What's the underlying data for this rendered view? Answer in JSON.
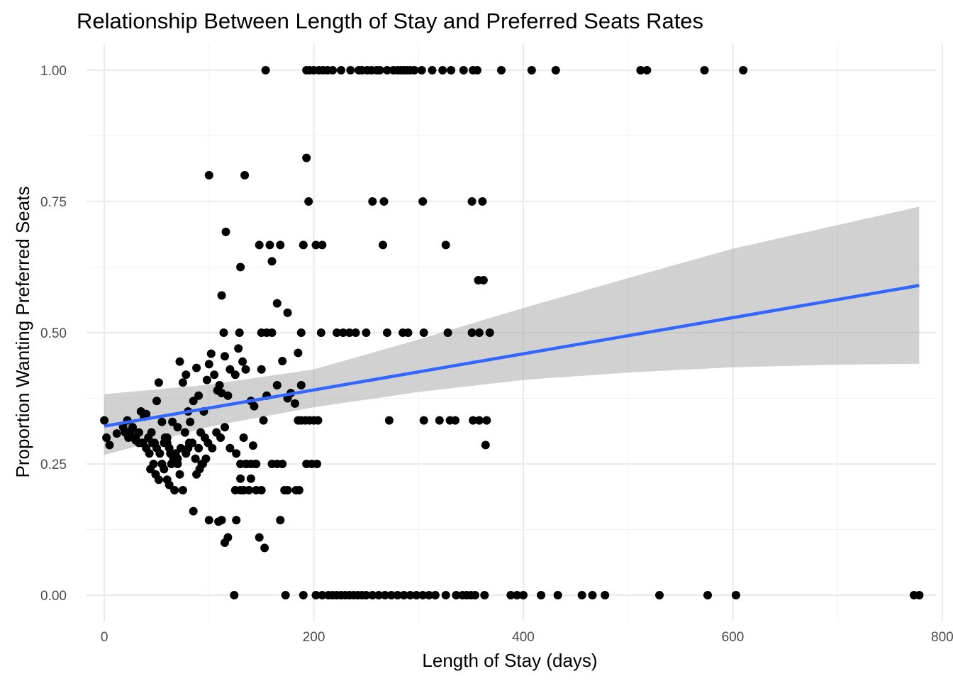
{
  "chart_data": {
    "type": "scatter",
    "title": "Relationship Between Length of Stay and Preferred Seats Rates",
    "xlabel": "Length of Stay (days)",
    "ylabel": "Proportion Wanting Preferred Seats",
    "xlim": [
      -17,
      794
    ],
    "ylim": [
      -0.05,
      1.05
    ],
    "x_ticks": [
      0,
      200,
      400,
      600,
      800
    ],
    "x_tick_labels": [
      "0",
      "200",
      "400",
      "600",
      "800"
    ],
    "y_ticks": [
      0,
      0.25,
      0.5,
      0.75,
      1
    ],
    "y_tick_labels": [
      "0.00",
      "0.25",
      "0.50",
      "0.75",
      "1.00"
    ],
    "grid": true,
    "legend": "none",
    "colors": {
      "points": "#000000",
      "trend_line": "#3366ff",
      "confidence_band": "#999999"
    },
    "trend_line": {
      "x": [
        0,
        778
      ],
      "y": [
        0.322,
        0.59
      ],
      "band": {
        "x": [
          0,
          100,
          200,
          300,
          400,
          500,
          600,
          700,
          778
        ],
        "lower": [
          0.267,
          0.321,
          0.358,
          0.387,
          0.41,
          0.424,
          0.434,
          0.439,
          0.441
        ],
        "upper": [
          0.383,
          0.401,
          0.43,
          0.487,
          0.547,
          0.604,
          0.66,
          0.705,
          0.74
        ]
      }
    },
    "series": [
      {
        "x": [
          154,
          193,
          196,
          200,
          205,
          209,
          213,
          218,
          226,
          235,
          243,
          246,
          251,
          255,
          260,
          263,
          270,
          276,
          280,
          283,
          286,
          289,
          292,
          296,
          303,
          313,
          323,
          331,
          343,
          352,
          356,
          379,
          408,
          431,
          512,
          518,
          573,
          610,
          193,
          100,
          134,
          195,
          256,
          267,
          304,
          351,
          361,
          116,
          148,
          158,
          168,
          190,
          202,
          208,
          266,
          326,
          130,
          160,
          357,
          362,
          112,
          165,
          175,
          114,
          129,
          150,
          155,
          160,
          188,
          207,
          222,
          228,
          234,
          240,
          250,
          270,
          285,
          290,
          305,
          328,
          351,
          358,
          368,
          185
        ],
        "y": [
          1,
          1,
          1,
          1,
          1,
          1,
          1,
          1,
          1,
          1,
          1,
          1,
          1,
          1,
          1,
          1,
          1,
          1,
          1,
          1,
          1,
          1,
          1,
          1,
          1,
          1,
          1,
          1,
          1,
          1,
          1,
          1,
          1,
          1,
          1,
          1,
          1,
          1,
          0.833,
          0.8,
          0.8,
          0.75,
          0.75,
          0.75,
          0.75,
          0.75,
          0.75,
          0.692,
          0.667,
          0.667,
          0.667,
          0.667,
          0.667,
          0.667,
          0.667,
          0.667,
          0.625,
          0.636,
          0.6,
          0.6,
          0.571,
          0.556,
          0.538,
          0.5,
          0.5,
          0.5,
          0.5,
          0.5,
          0.5,
          0.5,
          0.5,
          0.5,
          0.5,
          0.5,
          0.5,
          0.5,
          0.5,
          0.5,
          0.5,
          0.5,
          0.5,
          0.5,
          0.5,
          0.4615
        ]
      },
      {
        "x": [
          0,
          2,
          5,
          12,
          18,
          22,
          25,
          28,
          30,
          33,
          35,
          38,
          40,
          42,
          45,
          48,
          50,
          52,
          55,
          58,
          60,
          62,
          65,
          68,
          70,
          72,
          75,
          78,
          80,
          82,
          85,
          88,
          90,
          92,
          95,
          98,
          100,
          102,
          105,
          108,
          110,
          112,
          115,
          118,
          120,
          125,
          128,
          132,
          135,
          140,
          143,
          150,
          155,
          165,
          170,
          175,
          178,
          182,
          188,
          20,
          23,
          27,
          30,
          33,
          37,
          40,
          43,
          46,
          50,
          53,
          57,
          60,
          63,
          66,
          70,
          73,
          77,
          80,
          84,
          87,
          90,
          93,
          96,
          99,
          103,
          107,
          111,
          115,
          120,
          126,
          133,
          36,
          44,
          47,
          49,
          52,
          55,
          57,
          60,
          62,
          64,
          67,
          70,
          72,
          75,
          78,
          81,
          85,
          88,
          91,
          94,
          97,
          109,
          152,
          185,
          188,
          192,
          196,
          200,
          204,
          272,
          305,
          320,
          330,
          335,
          352,
          358,
          365,
          144,
          160,
          165,
          170,
          193,
          198,
          203,
          136,
          140,
          125,
          130,
          133,
          138,
          145,
          150,
          130,
          135,
          142,
          145,
          172,
          175,
          183,
          186,
          130,
          140,
          100,
          112,
          126,
          168,
          115,
          118,
          148,
          153,
          364
        ],
        "y": [
          0.333,
          0.3,
          0.286,
          0.308,
          0.32,
          0.333,
          0.312,
          0.3,
          0.295,
          0.31,
          0.35,
          0.34,
          0.345,
          0.3,
          0.31,
          0.29,
          0.37,
          0.405,
          0.33,
          0.3,
          0.29,
          0.28,
          0.33,
          0.27,
          0.32,
          0.445,
          0.405,
          0.42,
          0.35,
          0.33,
          0.37,
          0.433,
          0.38,
          0.31,
          0.35,
          0.41,
          0.44,
          0.46,
          0.42,
          0.39,
          0.4,
          0.385,
          0.455,
          0.38,
          0.43,
          0.42,
          0.47,
          0.445,
          0.43,
          0.37,
          0.36,
          0.43,
          0.38,
          0.4,
          0.446,
          0.375,
          0.385,
          0.365,
          0.4,
          0.31,
          0.3,
          0.32,
          0.3,
          0.29,
          0.29,
          0.28,
          0.27,
          0.29,
          0.28,
          0.27,
          0.29,
          0.3,
          0.27,
          0.26,
          0.25,
          0.28,
          0.31,
          0.28,
          0.29,
          0.26,
          0.28,
          0.25,
          0.3,
          0.29,
          0.28,
          0.31,
          0.3,
          0.32,
          0.28,
          0.27,
          0.3,
          0.29,
          0.24,
          0.25,
          0.23,
          0.22,
          0.25,
          0.24,
          0.22,
          0.21,
          0.25,
          0.2,
          0.26,
          0.23,
          0.2,
          0.27,
          0.29,
          0.16,
          0.23,
          0.24,
          0.25,
          0.26,
          0.14,
          0.333,
          0.333,
          0.333,
          0.333,
          0.333,
          0.333,
          0.333,
          0.333,
          0.333,
          0.333,
          0.333,
          0.333,
          0.333,
          0.333,
          0.333,
          0.25,
          0.25,
          0.25,
          0.25,
          0.25,
          0.25,
          0.25,
          0.25,
          0.25,
          0.2,
          0.2,
          0.2,
          0.2,
          0.2,
          0.2,
          0.25,
          0.25,
          0.285,
          0.25,
          0.2,
          0.2,
          0.2,
          0.2,
          0.222,
          0.222,
          0.143,
          0.143,
          0.143,
          0.143,
          0.1,
          0.11,
          0.11,
          0.09,
          0.286
        ]
      },
      {
        "x": [
          124,
          173,
          190,
          202,
          208,
          214,
          218,
          222,
          226,
          230,
          234,
          238,
          242,
          246,
          250,
          256,
          262,
          268,
          274,
          280,
          286,
          292,
          298,
          304,
          310,
          316,
          326,
          336,
          342,
          346,
          350,
          354,
          363,
          388,
          394,
          400,
          417,
          433,
          456,
          466,
          478,
          530,
          576,
          603,
          773,
          778
        ],
        "y": [
          0,
          0,
          0,
          0,
          0,
          0,
          0,
          0,
          0,
          0,
          0,
          0,
          0,
          0,
          0,
          0,
          0,
          0,
          0,
          0,
          0,
          0,
          0,
          0,
          0,
          0,
          0,
          0,
          0,
          0,
          0,
          0,
          0,
          0,
          0,
          0,
          0,
          0,
          0,
          0,
          0,
          0,
          0,
          0,
          0,
          0
        ]
      }
    ]
  }
}
